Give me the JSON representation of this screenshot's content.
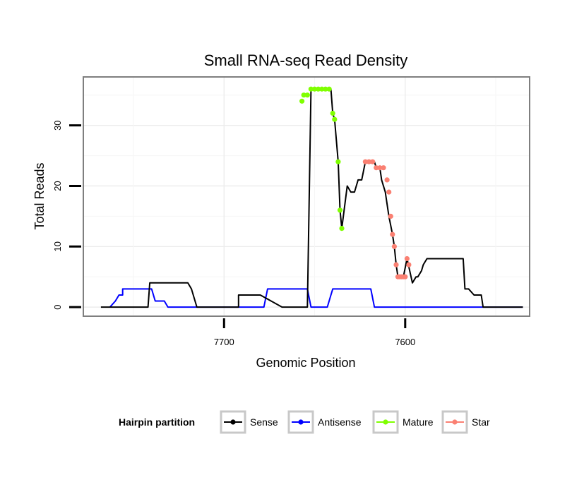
{
  "chart_data": {
    "type": "line",
    "title": "Small RNA-seq Read Density",
    "xlabel": "Genomic Position",
    "ylabel": "Total Reads",
    "x_reversed": true,
    "xlim": [
      7780,
      7530
    ],
    "ylim": [
      -1.5,
      38
    ],
    "x_ticks": [
      7700,
      7600
    ],
    "x_tick_labels": [
      "7700",
      "7600"
    ],
    "y_ticks": [
      0,
      10,
      20,
      30
    ],
    "y_tick_labels": [
      "0",
      "10",
      "20",
      "30"
    ],
    "grid": true,
    "legend": {
      "position": "bottom",
      "title": "Hairpin partition",
      "entries": [
        {
          "label": "Sense",
          "color": "#000000"
        },
        {
          "label": "Antisense",
          "color": "#0000ff"
        },
        {
          "label": "Mature",
          "color": "#7fff00"
        },
        {
          "label": "Star",
          "color": "#fa8072"
        }
      ]
    },
    "series": [
      {
        "name": "Sense",
        "color": "#000000",
        "x": [
          7768,
          7742,
          7741,
          7739,
          7720,
          7718,
          7715,
          7715,
          7712,
          7692,
          7692,
          7690,
          7680,
          7668,
          7666,
          7657,
          7654,
          7652,
          7650,
          7648,
          7646,
          7644,
          7643,
          7641,
          7640,
          7639,
          7637,
          7636,
          7635,
          7632,
          7630,
          7628,
          7626,
          7624,
          7622,
          7619,
          7617,
          7616,
          7614,
          7613,
          7611,
          7609,
          7607,
          7606,
          7605,
          7604,
          7603,
          7601,
          7599,
          7599,
          7596,
          7594,
          7593,
          7591,
          7590,
          7588,
          7585,
          7584,
          7582,
          7581,
          7578,
          7568,
          7567,
          7565,
          7562,
          7558,
          7557,
          7555,
          7535
        ],
        "y": [
          0,
          0,
          4,
          4,
          4,
          3,
          0,
          0,
          0,
          0,
          2,
          2,
          2,
          0,
          0,
          0,
          0,
          36,
          36,
          36,
          36,
          36,
          36,
          36,
          32,
          31,
          24,
          16,
          13,
          20,
          19,
          19,
          21,
          21,
          24,
          24,
          24,
          23,
          23,
          21,
          19,
          15,
          12,
          10,
          7,
          5,
          5,
          5,
          8,
          8,
          4,
          5,
          5,
          6,
          7,
          8,
          8,
          8,
          8,
          8,
          8,
          8,
          3,
          3,
          2,
          2,
          0,
          0,
          0
        ]
      },
      {
        "name": "Antisense",
        "color": "#0000ff",
        "x": [
          7763,
          7760,
          7758,
          7756,
          7756,
          7740,
          7738,
          7736,
          7733,
          7731,
          7700,
          7678,
          7676,
          7676,
          7654,
          7652,
          7646,
          7643,
          7641,
          7640,
          7636,
          7619,
          7617,
          7570,
          7535
        ],
        "y": [
          0,
          1,
          2,
          2,
          3,
          3,
          1,
          1,
          1,
          0,
          0,
          0,
          3,
          3,
          3,
          0,
          0,
          0,
          2,
          3,
          3,
          3,
          0,
          0,
          0
        ]
      },
      {
        "name": "Mature",
        "color": "#7fff00",
        "x": [
          7657,
          7656,
          7654,
          7652,
          7650,
          7648,
          7646,
          7644,
          7642,
          7640,
          7639,
          7637,
          7636,
          7635
        ],
        "y": [
          34,
          35,
          35,
          36,
          36,
          36,
          36,
          36,
          36,
          32,
          31,
          24,
          16,
          13
        ]
      },
      {
        "name": "Star",
        "color": "#fa8072",
        "x": [
          7622,
          7620,
          7618,
          7616,
          7614,
          7612,
          7610,
          7609,
          7608,
          7607,
          7606,
          7605,
          7604,
          7603,
          7602,
          7601,
          7600,
          7599,
          7598
        ],
        "y": [
          24,
          24,
          24,
          23,
          23,
          23,
          21,
          19,
          15,
          12,
          10,
          7,
          5,
          5,
          5,
          5,
          5,
          8,
          7
        ]
      }
    ]
  }
}
